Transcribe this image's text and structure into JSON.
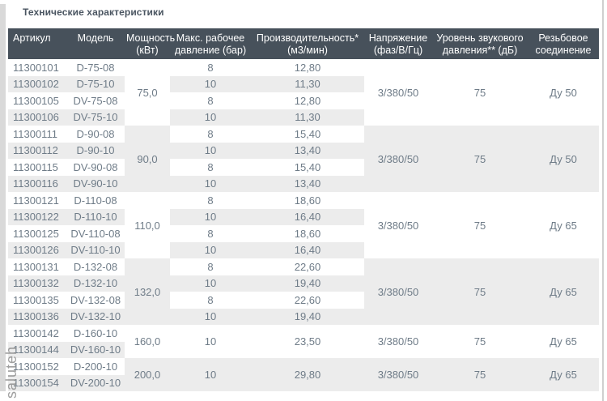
{
  "page": {
    "title": "Технические характеристики",
    "watermark": "saluteh"
  },
  "colors": {
    "header_bg": "#47515b",
    "header_text": "#ffffff",
    "row_alt": "#ececec",
    "cell_text": "#6f7c88",
    "title_text": "#4a5561",
    "left_strip": "#d9d9d9",
    "right_border": "#cfcfcf",
    "watermark": "#8f8f8f"
  },
  "table": {
    "columns": [
      {
        "label": "Артикул"
      },
      {
        "label": "Модель"
      },
      {
        "label": "Мощность (кВт)"
      },
      {
        "label": "Макс. рабочее давление (бар)"
      },
      {
        "label": "Производительность* (м3/мин)"
      },
      {
        "label": "Напряжение (фаз/В/Гц)"
      },
      {
        "label": "Уровень звукового давления** (дБ)"
      },
      {
        "label": "Резьбовое соединение"
      }
    ],
    "groups": [
      {
        "power": "75,0",
        "voltage": "3/380/50",
        "noise": "75",
        "connection": "Ду 50",
        "merged_rows": false,
        "rows": [
          {
            "article": "11300101",
            "model": "D-75-08",
            "pressure": "8",
            "capacity": "12,80"
          },
          {
            "article": "11300102",
            "model": "D-75-10",
            "pressure": "10",
            "capacity": "11,30"
          },
          {
            "article": "11300105",
            "model": "DV-75-08",
            "pressure": "8",
            "capacity": "12,80"
          },
          {
            "article": "11300106",
            "model": "DV-75-10",
            "pressure": "10",
            "capacity": "11,30"
          }
        ]
      },
      {
        "power": "90,0",
        "voltage": "3/380/50",
        "noise": "75",
        "connection": "Ду 50",
        "merged_rows": false,
        "rows": [
          {
            "article": "11300111",
            "model": "D-90-08",
            "pressure": "8",
            "capacity": "15,40"
          },
          {
            "article": "11300112",
            "model": "D-90-10",
            "pressure": "10",
            "capacity": "13,40"
          },
          {
            "article": "11300115",
            "model": "DV-90-08",
            "pressure": "8",
            "capacity": "15,40"
          },
          {
            "article": "11300116",
            "model": "DV-90-10",
            "pressure": "10",
            "capacity": "13,40"
          }
        ]
      },
      {
        "power": "110,0",
        "voltage": "3/380/50",
        "noise": "75",
        "connection": "Ду 65",
        "merged_rows": false,
        "rows": [
          {
            "article": "11300121",
            "model": "D-110-08",
            "pressure": "8",
            "capacity": "18,60"
          },
          {
            "article": "11300122",
            "model": "D-110-10",
            "pressure": "10",
            "capacity": "16,40"
          },
          {
            "article": "11300125",
            "model": "DV-110-08",
            "pressure": "8",
            "capacity": "18,60"
          },
          {
            "article": "11300126",
            "model": "DV-110-10",
            "pressure": "10",
            "capacity": "16,40"
          }
        ]
      },
      {
        "power": "132,0",
        "voltage": "3/380/50",
        "noise": "75",
        "connection": "Ду 65",
        "merged_rows": false,
        "rows": [
          {
            "article": "11300131",
            "model": "D-132-08",
            "pressure": "8",
            "capacity": "22,60"
          },
          {
            "article": "11300132",
            "model": "D-132-10",
            "pressure": "10",
            "capacity": "19,40"
          },
          {
            "article": "11300135",
            "model": "DV-132-08",
            "pressure": "8",
            "capacity": "22,60"
          },
          {
            "article": "11300136",
            "model": "DV-132-10",
            "pressure": "10",
            "capacity": "19,40"
          }
        ]
      },
      {
        "power": "160,0",
        "voltage": "3/380/50",
        "noise": "75",
        "connection": "Ду 65",
        "merged_rows": true,
        "pressure": "10",
        "capacity": "23,50",
        "rows": [
          {
            "article": "11300142",
            "model": "D-160-10"
          },
          {
            "article": "11300144",
            "model": "DV-160-10"
          }
        ]
      },
      {
        "power": "200,0",
        "voltage": "3/380/50",
        "noise": "75",
        "connection": "Ду 65",
        "merged_rows": true,
        "pressure": "10",
        "capacity": "29,80",
        "rows": [
          {
            "article": "11300152",
            "model": "D-200-10"
          },
          {
            "article": "11300154",
            "model": "DV-200-10"
          }
        ]
      }
    ]
  }
}
